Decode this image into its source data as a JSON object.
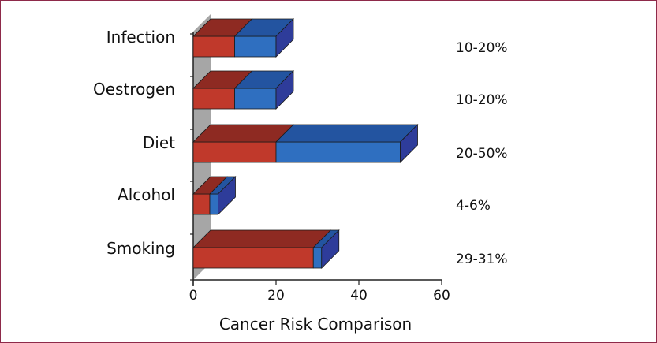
{
  "chart_data": {
    "type": "bar",
    "orientation": "horizontal",
    "stacked": true,
    "three_d": true,
    "categories": [
      "Infection",
      "Oestrogen",
      "Diet",
      "Alcohol",
      "Smoking"
    ],
    "series": [
      {
        "values": [
          10,
          10,
          20,
          4,
          29
        ]
      },
      {
        "values": [
          10,
          10,
          30,
          2,
          2
        ]
      }
    ],
    "value_labels": [
      "10-20%",
      "10-20%",
      "20-50%",
      "4-6%",
      "29-31%"
    ],
    "xlabel": "Cancer Risk Comparison",
    "xlim": [
      0,
      60
    ],
    "xticks": [
      0,
      20,
      40,
      60
    ],
    "colors": {
      "series_front": [
        "#c0392b",
        "#2f6fc0"
      ],
      "series_top": [
        "#8e2a22",
        "#2354a0"
      ],
      "side": "#2e3c9a",
      "wall": "#a6a6a6",
      "frame": "#8e2a4a"
    }
  }
}
